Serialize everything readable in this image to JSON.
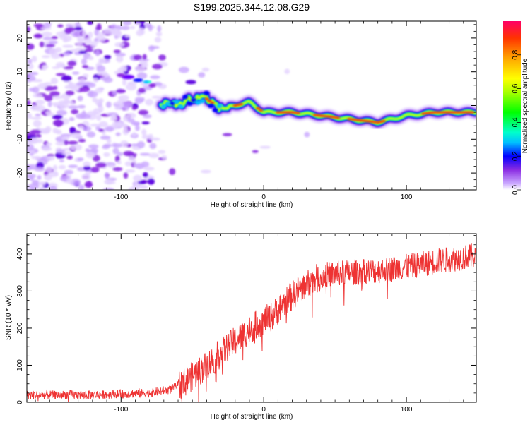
{
  "title": "S199.2025.344.12.08.G29",
  "chart_data": [
    {
      "type": "heatmap",
      "xlabel": "Height of straight line (km)",
      "ylabel": "Frequency (Hz)",
      "xlim": [
        -166,
        149
      ],
      "ylim": [
        -25,
        25
      ],
      "xticks": [
        -100,
        0,
        100
      ],
      "yticks": [
        -20,
        -10,
        0,
        10,
        20
      ],
      "colorbar": {
        "label": "Normalized spectral amplitude",
        "range": [
          0,
          1
        ],
        "ticks": [
          0.0,
          0.2,
          0.4,
          0.6,
          0.8
        ],
        "colors": [
          "#ffffff",
          "#c9a6ff",
          "#8a2be2",
          "#0000ff",
          "#00bfff",
          "#00ffcc",
          "#00ff00",
          "#aaff00",
          "#ffff00",
          "#ffa500",
          "#ff3300",
          "#ff0066"
        ]
      },
      "ridge": {
        "x": [
          -72,
          -60,
          -50,
          -40,
          -30,
          -20,
          -10,
          0,
          20,
          40,
          60,
          80,
          100,
          120,
          149
        ],
        "y": [
          0,
          0.5,
          2,
          2,
          -1,
          0,
          1,
          -2,
          -2,
          -3,
          -4,
          -5,
          -3,
          -2,
          -2
        ]
      }
    },
    {
      "type": "line",
      "xlabel": "Height of straight line (km)",
      "ylabel": "SNR (10 * v/v)",
      "xlim": [
        -166,
        149
      ],
      "ylim": [
        0,
        455
      ],
      "xticks": [
        -100,
        0,
        100
      ],
      "yticks": [
        0,
        100,
        200,
        300,
        400
      ],
      "color": "#ee3333",
      "series": [
        {
          "name": "SNR",
          "x": [
            -166,
            -120,
            -80,
            -65,
            -55,
            -45,
            -35,
            -25,
            -15,
            -5,
            5,
            15,
            25,
            35,
            45,
            60,
            80,
            100,
            120,
            149
          ],
          "values": [
            20,
            20,
            25,
            35,
            55,
            85,
            115,
            150,
            180,
            210,
            230,
            270,
            305,
            330,
            345,
            350,
            355,
            365,
            380,
            395
          ]
        }
      ]
    }
  ]
}
